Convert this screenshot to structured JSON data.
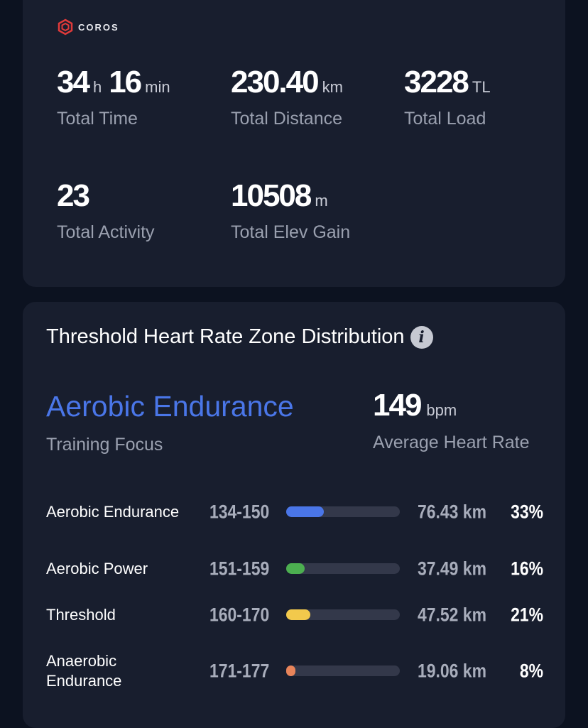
{
  "brand": {
    "name": "COROS",
    "logo_color": "#e03a3a"
  },
  "summary": {
    "total_time": {
      "hours": "34",
      "hours_unit": "h",
      "minutes": "16",
      "minutes_unit": "min",
      "label": "Total Time"
    },
    "total_distance": {
      "value": "230.40",
      "unit": "km",
      "label": "Total Distance"
    },
    "total_load": {
      "value": "3228",
      "unit": "TL",
      "label": "Total Load"
    },
    "total_activity": {
      "value": "23",
      "label": "Total Activity"
    },
    "total_elev_gain": {
      "value": "10508",
      "unit": "m",
      "label": "Total Elev Gain"
    }
  },
  "zones_section": {
    "title": "Threshold Heart Rate Zone Distribution",
    "info_icon": "i",
    "training_focus": {
      "value": "Aerobic Endurance",
      "label": "Training Focus",
      "color": "#4a76e8"
    },
    "avg_heart_rate": {
      "value": "149",
      "unit": "bpm",
      "label": "Average Heart Rate"
    },
    "zones": [
      {
        "name": "Aerobic Endurance",
        "range": "134-150",
        "distance": "76.43 km",
        "percent": "33%",
        "fraction": 0.33,
        "color": "#4a76e8"
      },
      {
        "name": "Aerobic Power",
        "range": "151-159",
        "distance": "37.49 km",
        "percent": "16%",
        "fraction": 0.16,
        "color": "#4caf50"
      },
      {
        "name": "Threshold",
        "range": "160-170",
        "distance": "47.52 km",
        "percent": "21%",
        "fraction": 0.21,
        "color": "#f2c94c"
      },
      {
        "name": "Anaerobic Endurance",
        "range": "171-177",
        "distance": "19.06 km",
        "percent": "8%",
        "fraction": 0.08,
        "color": "#e8845a"
      }
    ]
  }
}
